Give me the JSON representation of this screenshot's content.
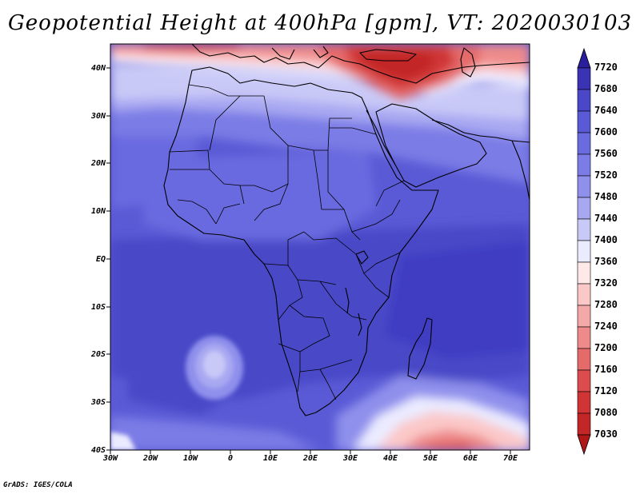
{
  "title": "Geopotential Height at 400hPa [gpm], VT: 2020030103",
  "credit": "GrADS: IGES/COLA",
  "map": {
    "region": "Africa",
    "lon_labels": [
      "30W",
      "20W",
      "10W",
      "0",
      "10E",
      "20E",
      "30E",
      "40E",
      "50E",
      "60E",
      "70E"
    ],
    "lat_labels": [
      "40N",
      "30N",
      "20N",
      "10N",
      "EQ",
      "10S",
      "20S",
      "30S",
      "40S"
    ]
  },
  "colorbar": {
    "levels": [
      "7720",
      "7680",
      "7640",
      "7600",
      "7560",
      "7520",
      "7480",
      "7440",
      "7400",
      "7360",
      "7320",
      "7280",
      "7240",
      "7200",
      "7160",
      "7120",
      "7080",
      "7030"
    ],
    "colors": [
      "#2a1e9c",
      "#3a33b4",
      "#4a48c8",
      "#5a5ad6",
      "#6b6be0",
      "#7c7ce6",
      "#8f8fec",
      "#a8a8f2",
      "#c9c9f7",
      "#ebebff",
      "#ffe8e8",
      "#fbc8c8",
      "#f5a8a8",
      "#ee8a8a",
      "#e56a6a",
      "#dc4c4c",
      "#d03434",
      "#c22626",
      "#b01818"
    ]
  }
}
